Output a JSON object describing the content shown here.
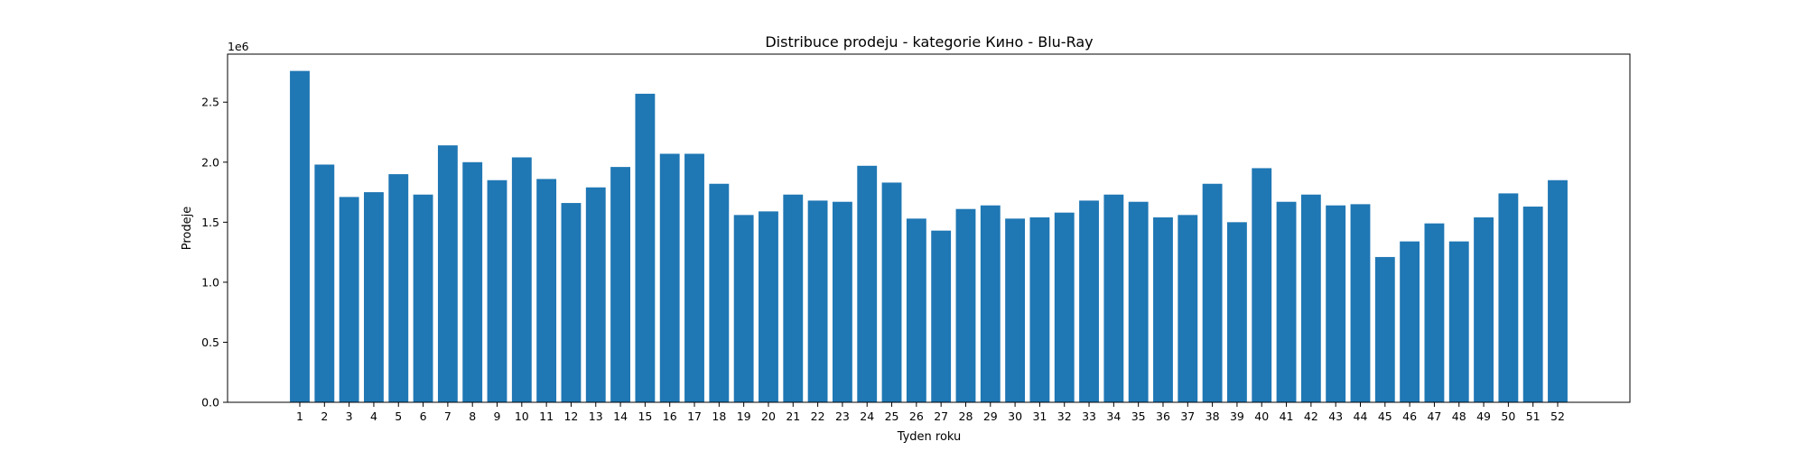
{
  "chart_data": {
    "type": "bar",
    "title": "Distribuce prodeju  - kategorie Кино - Blu-Ray",
    "xlabel": "Tyden roku",
    "ylabel": "Prodeje",
    "y_offset_label": "1e6",
    "y_scale_factor": 1000000,
    "ylim": [
      0,
      2900000
    ],
    "yticks": [
      0,
      500000,
      1000000,
      1500000,
      2000000,
      2500000
    ],
    "ytick_labels": [
      "0.0",
      "0.5",
      "1.0",
      "1.5",
      "2.0",
      "2.5"
    ],
    "grid": false,
    "bar_color": "#1f77b4",
    "categories": [
      "1",
      "2",
      "3",
      "4",
      "5",
      "6",
      "7",
      "8",
      "9",
      "10",
      "11",
      "12",
      "13",
      "14",
      "15",
      "16",
      "17",
      "18",
      "19",
      "20",
      "21",
      "22",
      "23",
      "24",
      "25",
      "26",
      "27",
      "28",
      "29",
      "30",
      "31",
      "32",
      "33",
      "34",
      "35",
      "36",
      "37",
      "38",
      "39",
      "40",
      "41",
      "42",
      "43",
      "44",
      "45",
      "46",
      "47",
      "48",
      "49",
      "50",
      "51",
      "52"
    ],
    "values": [
      2760000,
      1980000,
      1710000,
      1750000,
      1900000,
      1730000,
      2140000,
      2000000,
      1850000,
      2040000,
      1860000,
      1660000,
      1790000,
      1960000,
      2570000,
      2070000,
      2070000,
      1820000,
      1560000,
      1590000,
      1730000,
      1680000,
      1670000,
      1970000,
      1830000,
      1530000,
      1430000,
      1610000,
      1640000,
      1530000,
      1540000,
      1580000,
      1680000,
      1730000,
      1670000,
      1540000,
      1560000,
      1820000,
      1500000,
      1950000,
      1670000,
      1730000,
      1640000,
      1650000,
      1210000,
      1340000,
      1490000,
      1340000,
      1540000,
      1740000,
      1630000,
      1850000
    ]
  }
}
